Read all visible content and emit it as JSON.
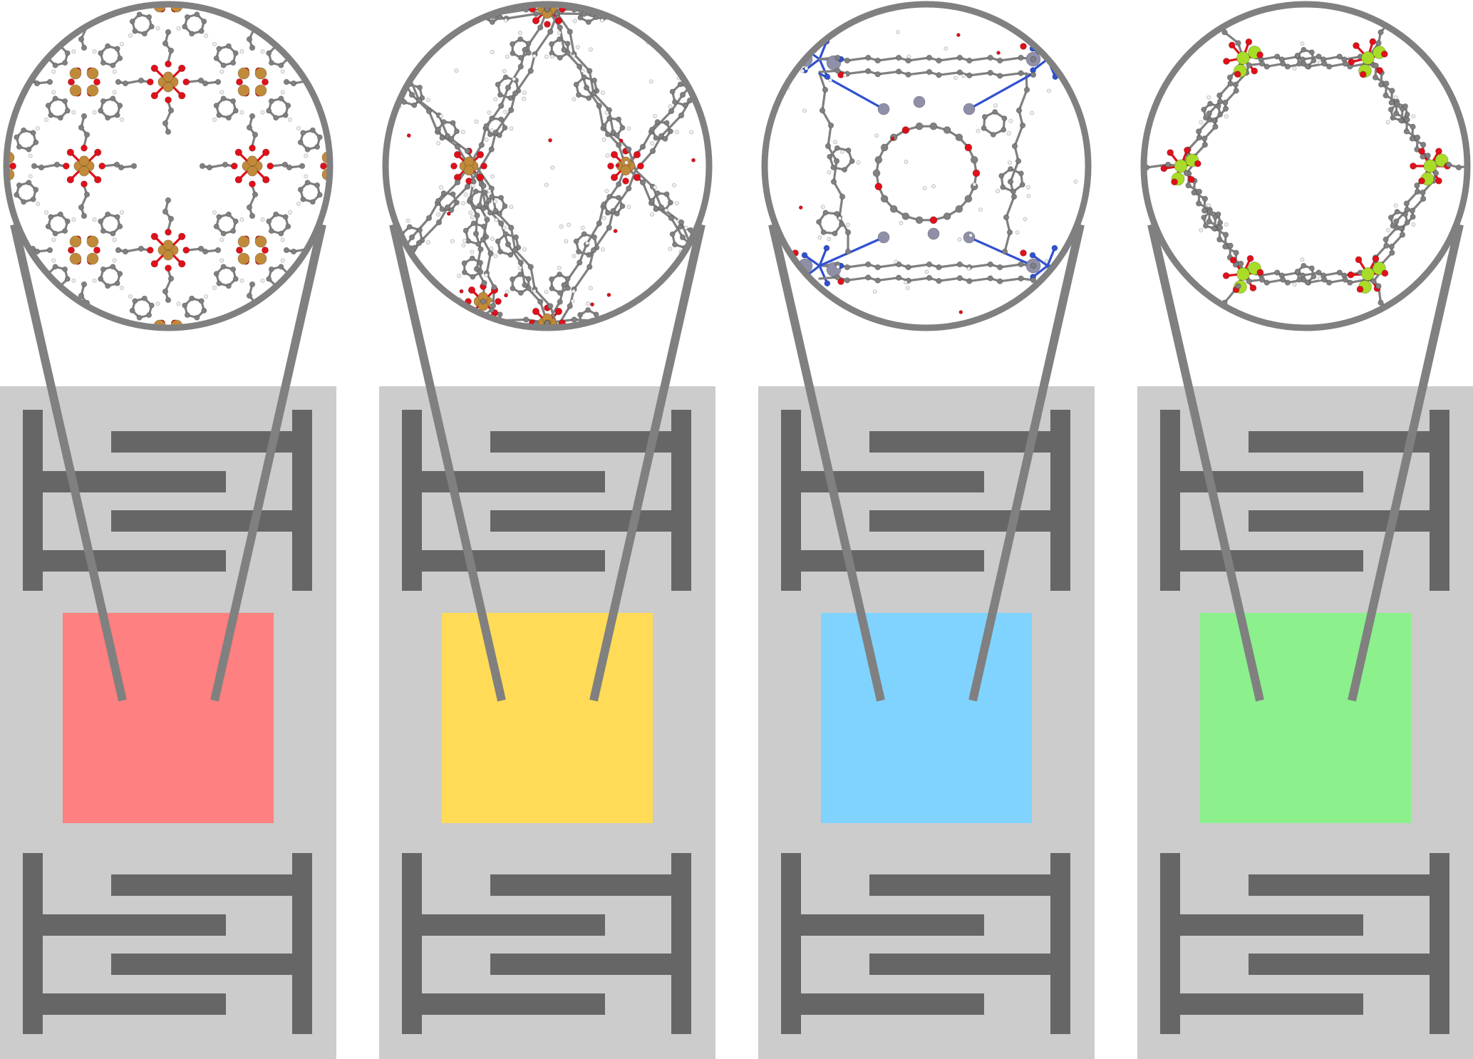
{
  "diagram": {
    "background": "#ffffff",
    "panel_color": "#cccccc",
    "electrode_color": "#666666",
    "lens_color": "#808080",
    "atom_colors": {
      "carbon": "#808080",
      "oxygen": "#e0101a",
      "hydrogen": "#f0f0f0",
      "nitrogen": "#3050d0",
      "copper": "#c08a3a",
      "zinc": "#8f8fa8",
      "magnesium": "#a8dc28"
    },
    "devices": [
      {
        "name": "device-1",
        "film_color": "#ff8080",
        "framework": "cu-paddlewheel-square",
        "metal": "copper"
      },
      {
        "name": "device-2",
        "film_color": "#ffdb58",
        "framework": "cu-diamond-lattice",
        "metal": "copper"
      },
      {
        "name": "device-3",
        "film_color": "#80d3ff",
        "framework": "zn-triazole-pore",
        "metal": "zinc"
      },
      {
        "name": "device-4",
        "film_color": "#8cf08c",
        "framework": "mg-hexagonal-channel",
        "metal": "magnesium"
      }
    ]
  }
}
